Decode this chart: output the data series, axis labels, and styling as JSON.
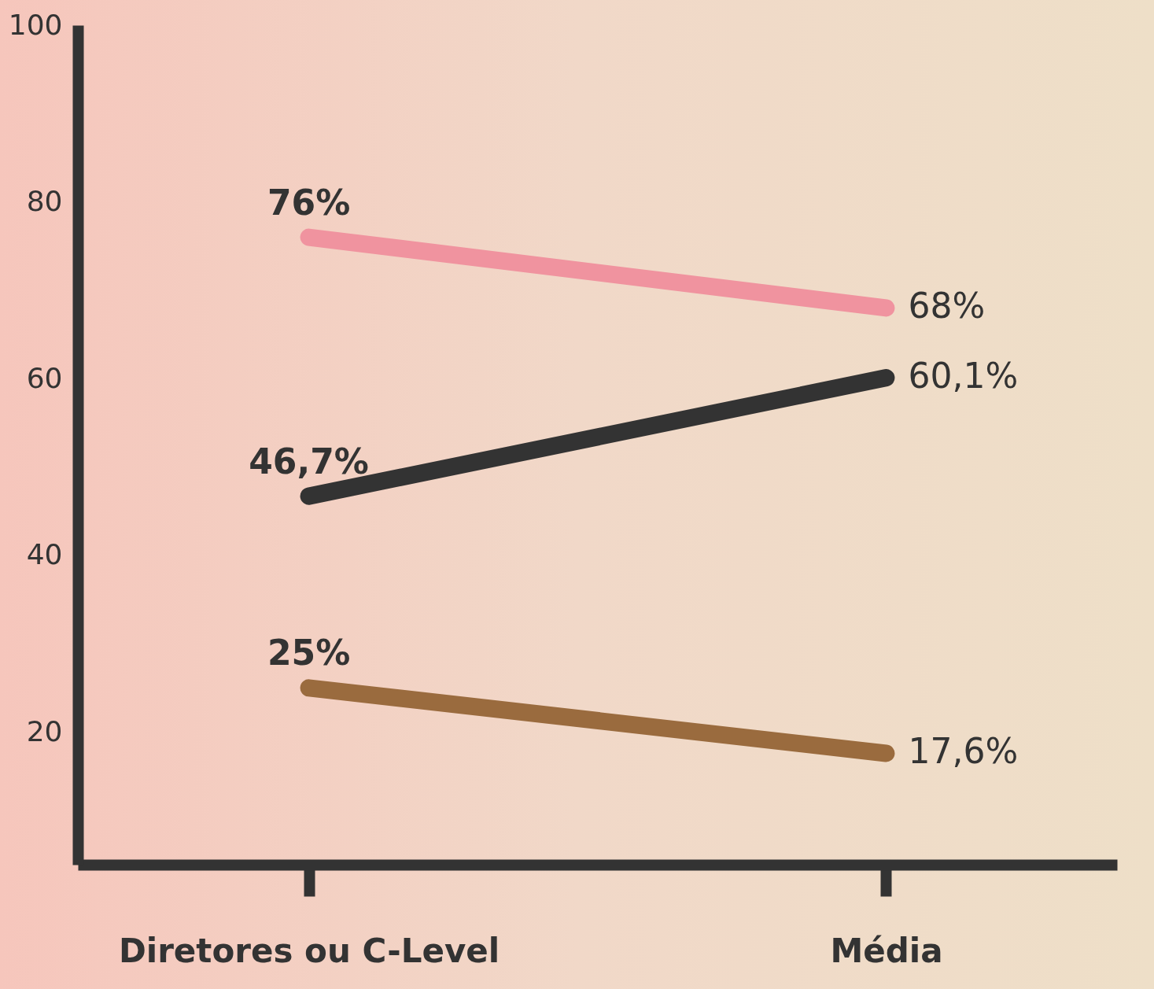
{
  "chart_data": {
    "type": "line",
    "categories": [
      "Diretores ou C-Level",
      "Média"
    ],
    "series": [
      {
        "color": "#f0939f",
        "values": [
          76,
          68
        ],
        "value_labels": [
          "76%",
          "68%"
        ]
      },
      {
        "color": "#333333",
        "values": [
          46.7,
          60.1
        ],
        "value_labels": [
          "46,7%",
          "60,1%"
        ]
      },
      {
        "color": "#9a6b3e",
        "values": [
          25,
          17.6
        ],
        "value_labels": [
          "25%",
          "17,6%"
        ]
      }
    ],
    "ylim": [
      5,
      100
    ],
    "yticks": [
      20,
      40,
      60,
      80,
      100
    ],
    "grid": false,
    "legend": false,
    "line_style": "solid"
  }
}
